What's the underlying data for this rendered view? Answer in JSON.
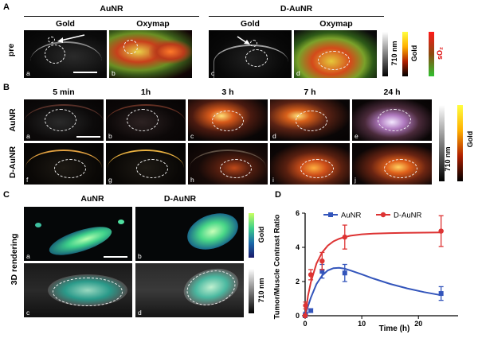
{
  "panel_labels": {
    "a": "A",
    "b": "B",
    "c": "C",
    "d": "D"
  },
  "panel_a": {
    "group_aunr": "AuNR",
    "group_daunr": "D-AuNR",
    "col_gold_1": "Gold",
    "col_oxymap_1": "Oxymap",
    "col_gold_2": "Gold",
    "col_oxymap_2": "Oxymap",
    "row_label": "pre",
    "sub_labels": [
      "a",
      "b",
      "c",
      "d"
    ],
    "cbar_710": "710 nm",
    "cbar_gold": "Gold",
    "cbar_so2": "sO₂"
  },
  "panel_b": {
    "time_labels": [
      "5 min",
      "1h",
      "3 h",
      "7 h",
      "24 h"
    ],
    "row_aunr": "AuNR",
    "row_daunr": "D-AuNR",
    "sub_labels_top": [
      "a",
      "b",
      "c",
      "d",
      "e"
    ],
    "sub_labels_bottom": [
      "f",
      "g",
      "h",
      "i",
      "j"
    ],
    "cbar_710": "710 nm",
    "cbar_gold": "Gold"
  },
  "panel_c": {
    "col_aunr": "AuNR",
    "col_daunr": "D-AuNR",
    "row_label": "3D rendering",
    "sub_labels": [
      "a",
      "b",
      "c",
      "d"
    ],
    "cbar_gold": "Gold",
    "cbar_710": "710 nm"
  },
  "chart_data": {
    "type": "line",
    "xlabel": "Time  (h)",
    "ylabel": "Tumor/Muscle Contrast Ratio",
    "xlim": [
      0,
      27
    ],
    "ylim": [
      0,
      6
    ],
    "xticks": [
      0,
      10,
      20
    ],
    "yticks": [
      0,
      2,
      4,
      6
    ],
    "legend_position": "top",
    "series": [
      {
        "name": "AuNR",
        "color": "#3355bb",
        "marker": "square",
        "x": [
          0,
          0.083,
          1,
          3,
          7,
          24
        ],
        "y": [
          0,
          0.1,
          0.3,
          2.6,
          2.5,
          1.3
        ],
        "err": [
          0,
          0.05,
          0.1,
          0.4,
          0.5,
          0.4
        ],
        "fit_x": [
          0,
          0.5,
          1,
          2,
          3,
          4,
          5,
          6,
          7,
          8,
          10,
          12,
          15,
          18,
          21,
          24
        ],
        "fit_y": [
          0,
          0.55,
          1.05,
          1.85,
          2.35,
          2.65,
          2.78,
          2.8,
          2.75,
          2.65,
          2.42,
          2.18,
          1.86,
          1.6,
          1.38,
          1.2
        ]
      },
      {
        "name": "D-AuNR",
        "color": "#dd3333",
        "marker": "circle",
        "x": [
          0,
          0.083,
          1,
          3,
          7,
          24
        ],
        "y": [
          0,
          0.6,
          2.4,
          3.2,
          4.6,
          4.95
        ],
        "err": [
          0,
          0.2,
          0.3,
          0.5,
          0.7,
          0.9
        ],
        "fit_x": [
          0,
          0.5,
          1,
          2,
          3,
          4,
          5,
          6,
          7,
          8,
          10,
          12,
          15,
          18,
          21,
          24
        ],
        "fit_y": [
          0,
          1.15,
          1.95,
          3.05,
          3.7,
          4.1,
          4.35,
          4.5,
          4.6,
          4.68,
          4.76,
          4.8,
          4.83,
          4.85,
          4.86,
          4.87
        ]
      }
    ]
  }
}
